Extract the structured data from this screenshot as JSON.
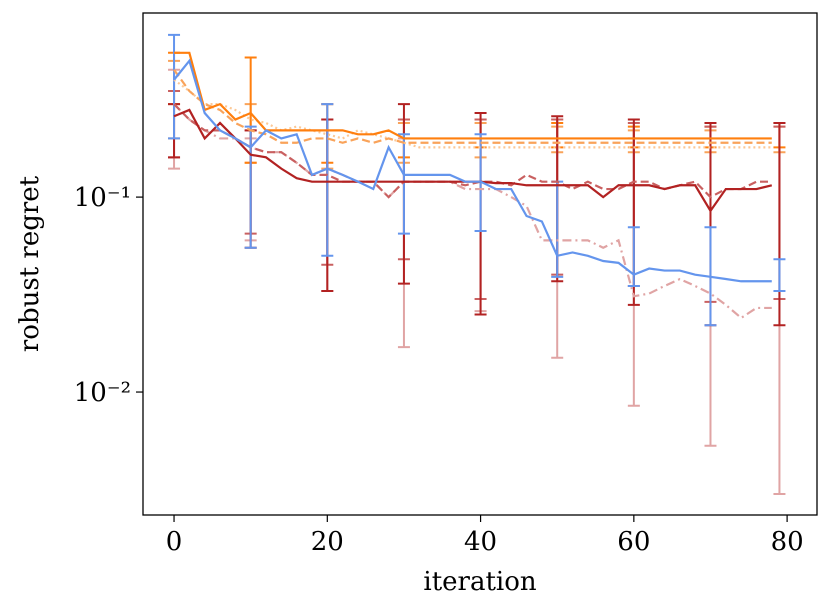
{
  "chart_data": {
    "type": "line",
    "xlabel": "iteration",
    "ylabel": "robust regret",
    "xlim": [
      -4.05,
      83.9
    ],
    "xticks": [
      0,
      20,
      40,
      60,
      80
    ],
    "ylim": [
      0.00234,
      0.88
    ],
    "yscale": "log",
    "yticks": [
      {
        "value": 0.01,
        "label": "10⁻²"
      },
      {
        "value": 0.1,
        "label": "10⁻¹"
      }
    ],
    "x": [
      0,
      2,
      4,
      6,
      8,
      10,
      12,
      14,
      16,
      18,
      20,
      22,
      24,
      26,
      28,
      30,
      32,
      34,
      36,
      38,
      40,
      42,
      44,
      46,
      48,
      50,
      52,
      54,
      56,
      58,
      60,
      62,
      64,
      66,
      68,
      70,
      72,
      74,
      76,
      78
    ],
    "error_x": [
      0,
      10,
      20,
      30,
      40,
      50,
      60,
      70,
      79
    ],
    "series": [
      {
        "color": "#fcc895",
        "linestyle": "dotted",
        "values": [
          0.4,
          0.35,
          0.3,
          0.3,
          0.28,
          0.25,
          0.24,
          0.22,
          0.23,
          0.22,
          0.21,
          0.2,
          0.22,
          0.21,
          0.2,
          0.19,
          0.18,
          0.18,
          0.18,
          0.18,
          0.18,
          0.18,
          0.18,
          0.18,
          0.18,
          0.18,
          0.18,
          0.18,
          0.18,
          0.18,
          0.18,
          0.18,
          0.18,
          0.18,
          0.18,
          0.18,
          0.18,
          0.18,
          0.18,
          0.18
        ]
      },
      {
        "color": "#f9a35a",
        "linestyle": "dashed",
        "values": [
          0.45,
          0.35,
          0.3,
          0.28,
          0.24,
          0.22,
          0.21,
          0.19,
          0.19,
          0.2,
          0.2,
          0.19,
          0.2,
          0.19,
          0.2,
          0.19,
          0.19,
          0.19,
          0.19,
          0.19,
          0.19,
          0.19,
          0.19,
          0.19,
          0.19,
          0.19,
          0.19,
          0.19,
          0.19,
          0.19,
          0.19,
          0.19,
          0.19,
          0.19,
          0.19,
          0.19,
          0.19,
          0.19,
          0.19,
          0.19
        ],
        "lower": [
          0.2,
          0.15,
          0.14,
          0.15,
          0.16,
          0.17,
          0.17,
          0.17,
          0.17
        ],
        "upper": [
          0.5,
          0.3,
          0.3,
          0.24,
          0.24,
          0.23,
          0.22,
          0.22,
          0.23
        ]
      },
      {
        "color": "#ff7f0e",
        "linestyle": "solid",
        "values": [
          0.55,
          0.55,
          0.28,
          0.3,
          0.25,
          0.27,
          0.22,
          0.22,
          0.22,
          0.22,
          0.22,
          0.22,
          0.21,
          0.21,
          0.22,
          0.2,
          0.2,
          0.2,
          0.2,
          0.2,
          0.2,
          0.2,
          0.2,
          0.2,
          0.2,
          0.2,
          0.2,
          0.2,
          0.2,
          0.2,
          0.2,
          0.2,
          0.2,
          0.2,
          0.2,
          0.2,
          0.2,
          0.2,
          0.2,
          0.2
        ],
        "lower": [
          0.3,
          0.15,
          0.15,
          0.16,
          0.18,
          0.18,
          0.18,
          0.18,
          0.18
        ],
        "upper": [
          0.55,
          0.52,
          0.3,
          0.25,
          0.25,
          0.24,
          0.23,
          0.23,
          0.24
        ]
      },
      {
        "color": "#e0a4a4",
        "linestyle": "dashdot",
        "values": [
          0.3,
          0.25,
          0.22,
          0.2,
          0.2,
          0.18,
          0.17,
          0.17,
          0.15,
          0.13,
          0.14,
          0.13,
          0.12,
          0.12,
          0.1,
          0.12,
          0.12,
          0.12,
          0.12,
          0.11,
          0.11,
          0.11,
          0.1,
          0.09,
          0.06,
          0.06,
          0.06,
          0.06,
          0.055,
          0.06,
          0.031,
          0.032,
          0.035,
          0.038,
          0.035,
          0.032,
          0.028,
          0.024,
          0.027,
          0.027
        ],
        "lower": [
          0.14,
          0.06,
          0.033,
          0.017,
          0.026,
          0.015,
          0.0085,
          0.0053,
          0.003
        ],
        "upper": [
          0.45,
          0.2,
          0.3,
          0.2,
          0.25,
          0.25,
          0.2,
          0.23,
          0.24
        ]
      },
      {
        "color": "#c96060",
        "linestyle": "dashed",
        "values": [
          0.3,
          0.25,
          0.22,
          0.22,
          0.2,
          0.18,
          0.17,
          0.17,
          0.15,
          0.13,
          0.13,
          0.12,
          0.12,
          0.12,
          0.1,
          0.12,
          0.12,
          0.12,
          0.12,
          0.115,
          0.12,
          0.12,
          0.115,
          0.13,
          0.12,
          0.12,
          0.11,
          0.12,
          0.11,
          0.11,
          0.12,
          0.12,
          0.11,
          0.115,
          0.12,
          0.1,
          0.11,
          0.11,
          0.12,
          0.12
        ],
        "lower": [
          0.16,
          0.065,
          0.045,
          0.048,
          0.03,
          0.04,
          0.035,
          0.029,
          0.03
        ],
        "upper": [
          0.35,
          0.22,
          0.25,
          0.25,
          0.25,
          0.25,
          0.24,
          0.23,
          0.23
        ]
      },
      {
        "color": "#b22222",
        "linestyle": "solid",
        "values": [
          0.26,
          0.28,
          0.2,
          0.24,
          0.2,
          0.165,
          0.16,
          0.14,
          0.125,
          0.12,
          0.12,
          0.12,
          0.12,
          0.12,
          0.12,
          0.12,
          0.12,
          0.12,
          0.12,
          0.12,
          0.12,
          0.118,
          0.118,
          0.115,
          0.115,
          0.115,
          0.115,
          0.115,
          0.1,
          0.115,
          0.115,
          0.115,
          0.11,
          0.115,
          0.115,
          0.085,
          0.11,
          0.11,
          0.11,
          0.115
        ],
        "lower": [
          0.16,
          0.055,
          0.033,
          0.036,
          0.025,
          0.037,
          0.028,
          0.022,
          0.022
        ],
        "upper": [
          0.3,
          0.22,
          0.25,
          0.3,
          0.27,
          0.26,
          0.25,
          0.24,
          0.24
        ]
      },
      {
        "color": "#6495ed",
        "linestyle": "solid",
        "values": [
          0.4,
          0.5,
          0.27,
          0.22,
          0.2,
          0.18,
          0.22,
          0.2,
          0.21,
          0.13,
          0.14,
          0.13,
          0.12,
          0.11,
          0.18,
          0.13,
          0.13,
          0.13,
          0.13,
          0.12,
          0.12,
          0.11,
          0.11,
          0.08,
          0.075,
          0.05,
          0.052,
          0.05,
          0.047,
          0.046,
          0.04,
          0.043,
          0.042,
          0.042,
          0.04,
          0.039,
          0.038,
          0.037,
          0.037,
          0.037
        ],
        "lower": [
          0.2,
          0.055,
          0.05,
          0.065,
          0.067,
          0.039,
          0.035,
          0.022,
          0.033
        ],
        "upper": [
          0.68,
          0.23,
          0.3,
          0.21,
          0.21,
          0.12,
          0.07,
          0.07,
          0.048
        ]
      }
    ]
  }
}
